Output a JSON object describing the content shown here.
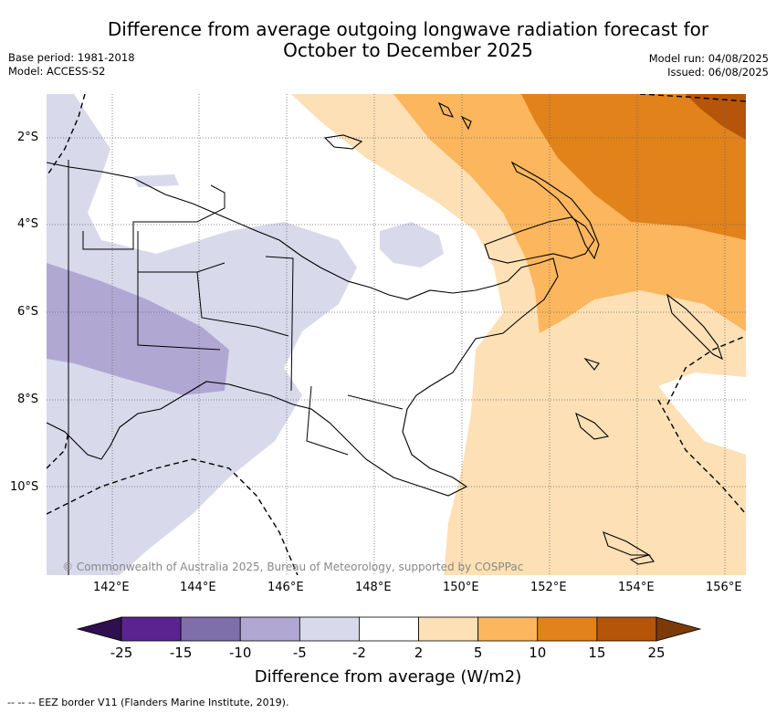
{
  "title_line1": "Difference from average outgoing longwave radiation forecast for",
  "title_line2": "October to December 2025",
  "base_period": "Base period: 1981-2018",
  "model": "Model: ACCESS-S2",
  "model_run": "Model run: 04/08/2025",
  "issued": "Issued: 06/08/2025",
  "lat_labels": [
    "2°S",
    "4°S",
    "6°S",
    "8°S",
    "10°S"
  ],
  "lon_labels": [
    "142°E",
    "144°E",
    "146°E",
    "148°E",
    "150°E",
    "152°E",
    "154°E",
    "156°E"
  ],
  "copyright": "© Commonwealth of Australia 2025, Bureau of Meteorology, supported by COSPPac",
  "colorbar": {
    "title": "Difference from average (W/m2)",
    "ticks": [
      "-25",
      "-15",
      "-10",
      "-5",
      "-2",
      "2",
      "5",
      "10",
      "15",
      "25"
    ],
    "colors": [
      "#2f0f4f",
      "#5b2390",
      "#7e6fab",
      "#b0a8d3",
      "#d9d9ec",
      "#ffffff",
      "#fde0b5",
      "#fbb65e",
      "#e2821a",
      "#b4550a",
      "#7d3a08"
    ]
  },
  "footnote": "-- -- -- EEZ border V11 (Flanders Marine Institute, 2019)."
}
